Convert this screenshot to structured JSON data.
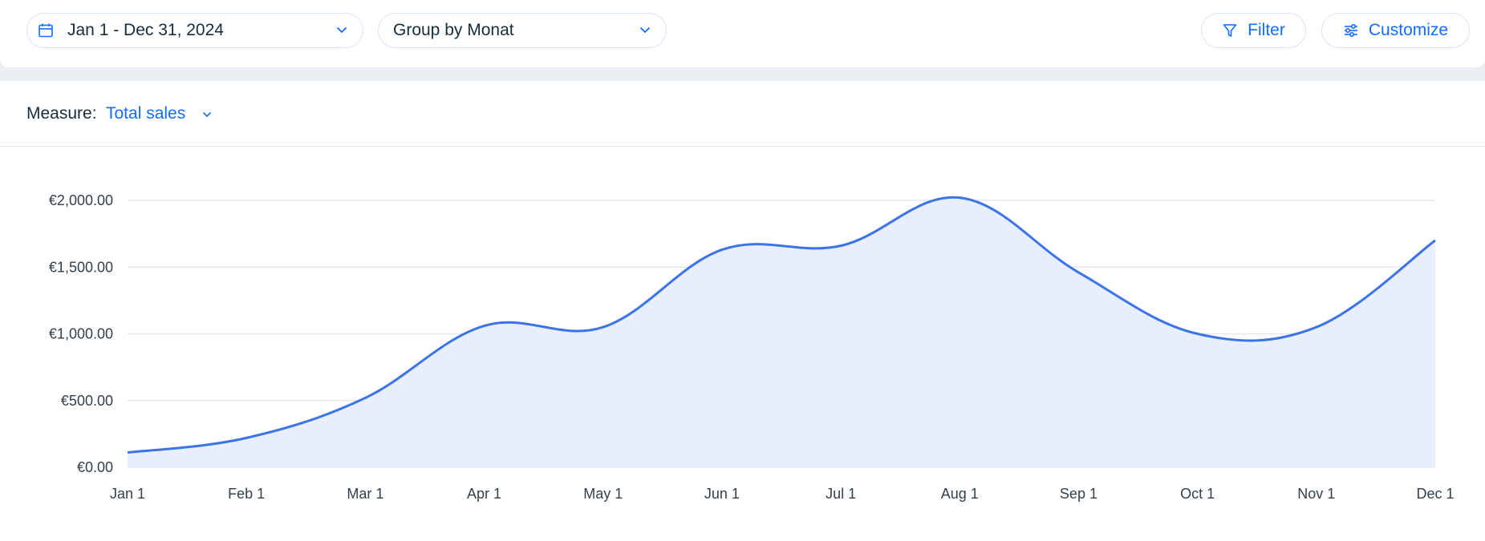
{
  "toolbar": {
    "date_range": {
      "label": "Jan 1 - Dec 31, 2024",
      "icon": "calendar-icon"
    },
    "group_by": {
      "label": "Group by Monat"
    },
    "filter_button": {
      "label": "Filter",
      "icon": "filter-icon"
    },
    "customize_button": {
      "label": "Customize",
      "icon": "sliders-icon"
    }
  },
  "measure": {
    "label": "Measure:",
    "value": "Total sales"
  },
  "colors": {
    "accent": "#116dff",
    "line": "#3b73e8",
    "area_fill": "#e8eefc",
    "grid": "#e1e5ea",
    "band": "#ebeef3"
  },
  "chart_data": {
    "type": "area",
    "title": "",
    "xlabel": "",
    "ylabel": "",
    "categories": [
      "Jan 1",
      "Feb 1",
      "Mar 1",
      "Apr 1",
      "May 1",
      "Jun 1",
      "Jul 1",
      "Aug 1",
      "Sep 1",
      "Oct 1",
      "Nov 1",
      "Dec 1"
    ],
    "values": [
      110,
      220,
      520,
      1060,
      1050,
      1630,
      1660,
      2020,
      1460,
      1000,
      1050,
      1700
    ],
    "ylim": [
      0,
      2000
    ],
    "y_ticks": [
      0,
      500,
      1000,
      1500,
      2000
    ],
    "y_tick_labels": [
      "€0.00",
      "€500.00",
      "€1,000.00",
      "€1,500.00",
      "€2,000.00"
    ],
    "grid": true,
    "legend": "none"
  }
}
